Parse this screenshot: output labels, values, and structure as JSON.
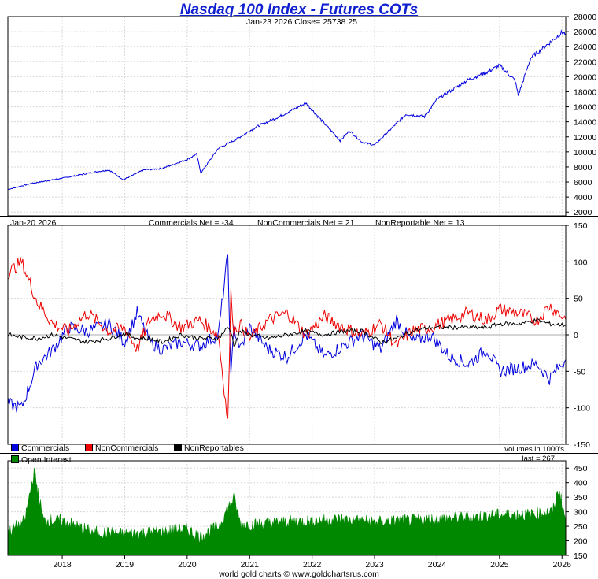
{
  "title": "Nasdaq 100 Index - Futures COTs",
  "price_info": "Jan-23  2026   Close= 25738.25",
  "cot_date": "Jan-20  2026",
  "commercials_net": "Commercials Net = -34",
  "noncommercials_net": "NonCommercials Net = 21",
  "nonreportable_net": "NonReportable Net = 13",
  "legend": {
    "commercials": "Commercials",
    "noncommercials": "NonCommercials",
    "nonreportables": "NonReportables",
    "open_interest": "Open Interest"
  },
  "volumes_note": "volumes in 1000's",
  "last_note": "last = 267",
  "footer": "world gold charts © www.goldchartsrus.com",
  "colors": {
    "price": "#0000dd",
    "commercials": "#0000dd",
    "noncommercials": "#ee0000",
    "nonreportables": "#000000",
    "open_interest": "#008800",
    "grid": "#d8d8d8"
  },
  "chart_data": [
    {
      "type": "line",
      "name": "price",
      "x_range": [
        2017.13,
        2026.06
      ],
      "ylim": [
        1500,
        28000
      ],
      "yticks": [
        2000,
        4000,
        6000,
        8000,
        10000,
        12000,
        14000,
        16000,
        18000,
        20000,
        22000,
        24000,
        26000,
        28000
      ],
      "x": [
        2017.13,
        2017.5,
        2018.0,
        2018.5,
        2018.75,
        2018.98,
        2019.3,
        2019.6,
        2020.0,
        2020.15,
        2020.22,
        2020.5,
        2020.75,
        2021.1,
        2021.5,
        2021.9,
        2022.15,
        2022.45,
        2022.6,
        2022.8,
        2023.0,
        2023.5,
        2023.8,
        2024.0,
        2024.5,
        2024.8,
        2025.0,
        2025.25,
        2025.3,
        2025.5,
        2025.8,
        2026.0,
        2026.06
      ],
      "series": [
        {
          "values": [
            5000,
            5800,
            6500,
            7300,
            7600,
            6300,
            7600,
            7800,
            9000,
            9700,
            7200,
            10500,
            11500,
            13300,
            14800,
            16500,
            14200,
            11500,
            12800,
            11300,
            10900,
            15000,
            14700,
            17000,
            19600,
            20600,
            21500,
            19500,
            17500,
            22500,
            24500,
            25900,
            25700
          ]
        }
      ]
    },
    {
      "type": "line",
      "name": "net positions",
      "x_range": [
        2017.13,
        2026.06
      ],
      "ylim": [
        -150,
        150
      ],
      "yticks": [
        -150,
        -100,
        -50,
        0,
        50,
        100,
        150
      ],
      "x": [
        2017.13,
        2017.35,
        2017.6,
        2017.85,
        2018.1,
        2018.4,
        2018.75,
        2019.0,
        2019.2,
        2019.4,
        2019.6,
        2019.9,
        2020.2,
        2020.5,
        2020.65,
        2020.7,
        2020.75,
        2020.85,
        2021.0,
        2021.3,
        2021.6,
        2021.9,
        2022.2,
        2022.5,
        2022.8,
        2023.1,
        2023.35,
        2023.6,
        2023.9,
        2024.2,
        2024.5,
        2024.8,
        2025.0,
        2025.3,
        2025.6,
        2025.8,
        2026.06
      ],
      "series": [
        {
          "name": "Commercials",
          "values": [
            -95,
            -100,
            -40,
            -20,
            10,
            5,
            15,
            -10,
            30,
            -10,
            -20,
            -10,
            -15,
            0,
            110,
            -60,
            10,
            -20,
            10,
            -20,
            -30,
            0,
            -30,
            -15,
            0,
            -20,
            20,
            -10,
            0,
            -30,
            -40,
            -20,
            -50,
            -45,
            -40,
            -60,
            -34
          ]
        },
        {
          "name": "NonCommercials",
          "values": [
            85,
            100,
            45,
            15,
            5,
            30,
            5,
            10,
            -20,
            20,
            30,
            10,
            20,
            0,
            -120,
            55,
            5,
            15,
            -5,
            20,
            30,
            0,
            25,
            10,
            0,
            15,
            -15,
            5,
            10,
            20,
            30,
            20,
            35,
            30,
            20,
            40,
            21
          ]
        },
        {
          "name": "NonReportables",
          "values": [
            0,
            -3,
            -5,
            0,
            -5,
            -10,
            -5,
            2,
            -5,
            -5,
            -10,
            0,
            -5,
            -5,
            10,
            5,
            -15,
            5,
            0,
            -5,
            0,
            5,
            0,
            5,
            5,
            -10,
            -5,
            5,
            10,
            10,
            10,
            10,
            15,
            15,
            20,
            15,
            13
          ]
        }
      ]
    },
    {
      "type": "area",
      "name": "Open Interest",
      "x_range": [
        2017.13,
        2026.06
      ],
      "ylim": [
        150,
        475
      ],
      "yticks": [
        150,
        200,
        250,
        300,
        350,
        400,
        450
      ],
      "xticks": [
        "2018",
        "2019",
        "2020",
        "2021",
        "2022",
        "2023",
        "2024",
        "2025",
        "2026"
      ],
      "x": [
        2017.13,
        2017.4,
        2017.55,
        2017.7,
        2018.0,
        2018.5,
        2019.0,
        2019.5,
        2020.0,
        2020.2,
        2020.5,
        2020.75,
        2020.85,
        2021.0,
        2021.5,
        2022.0,
        2022.5,
        2023.0,
        2023.5,
        2024.0,
        2024.5,
        2025.0,
        2025.5,
        2025.85,
        2025.95,
        2026.06
      ],
      "series": [
        {
          "values": [
            230,
            270,
            440,
            270,
            270,
            230,
            225,
            230,
            240,
            215,
            250,
            350,
            260,
            255,
            265,
            270,
            275,
            265,
            270,
            275,
            280,
            290,
            290,
            300,
            380,
            267
          ]
        }
      ]
    }
  ]
}
